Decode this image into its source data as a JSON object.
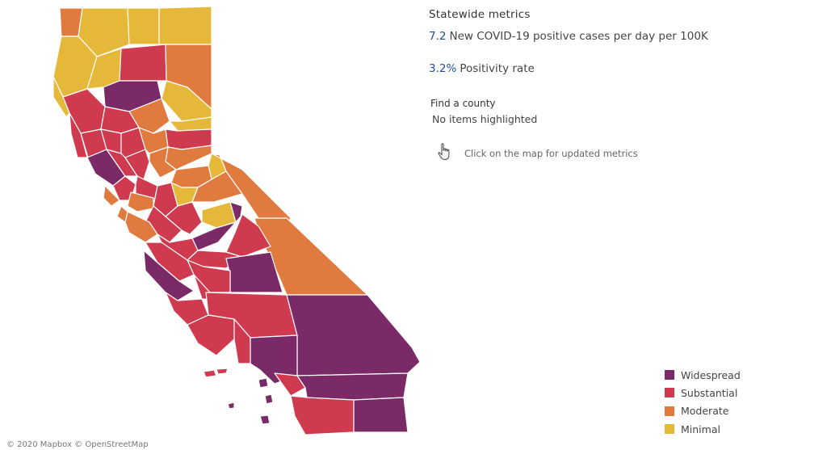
{
  "colors": {
    "widespread": "#7a2a67",
    "substantial": "#cf3a4e",
    "moderate": "#e07a3f",
    "minimal": "#e6b83a",
    "metric_value": "#1f4e9c"
  },
  "metrics": {
    "title": "Statewide metrics",
    "cases_value": "7.2",
    "cases_label": "New COVID-19 positive cases per day per 100K",
    "positivity_value": "3.2%",
    "positivity_label": "Positivity rate"
  },
  "search": {
    "label": "Find a county",
    "value": "No items highlighted"
  },
  "hint": {
    "icon": "pointer-hand-icon",
    "text": "Click on the map for updated metrics"
  },
  "legend": {
    "items": [
      {
        "label": "Widespread",
        "color": "#7a2a67"
      },
      {
        "label": "Substantial",
        "color": "#cf3a4e"
      },
      {
        "label": "Moderate",
        "color": "#e07a3f"
      },
      {
        "label": "Minimal",
        "color": "#e6b83a"
      }
    ]
  },
  "attribution": "© 2020 Mapbox © OpenStreetMap"
}
